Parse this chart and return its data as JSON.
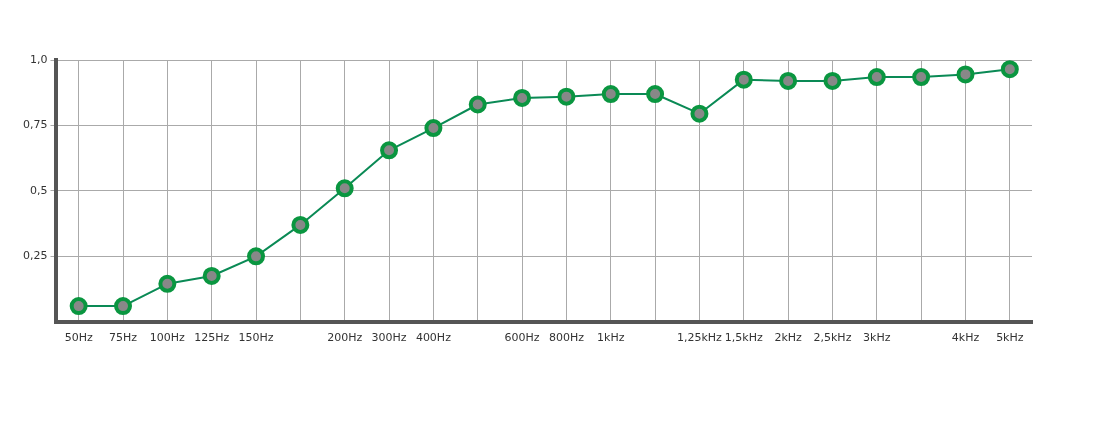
{
  "chart_data": {
    "type": "line",
    "categories": [
      "50Hz",
      "75Hz",
      "100Hz",
      "125Hz",
      "150Hz",
      null,
      "200Hz",
      "300Hz",
      "400Hz",
      null,
      "600Hz",
      "800Hz",
      "1kHz",
      null,
      "1,25kHz",
      "1,5kHz",
      "2kHz",
      "2,5kHz",
      "3kHz",
      null,
      "4kHz",
      "5kHz"
    ],
    "series": [
      {
        "color": "#0a8a55",
        "values": [
          0.06,
          0.06,
          0.145,
          0.175,
          0.25,
          0.37,
          0.51,
          0.655,
          0.74,
          0.83,
          0.855,
          0.86,
          0.87,
          0.87,
          0.795,
          0.925,
          0.92,
          0.92,
          0.935,
          0.935,
          0.945,
          0.965
        ]
      }
    ],
    "ylim": [
      0,
      1
    ],
    "yticks": [
      {
        "value": 0.25,
        "label": "0,25"
      },
      {
        "value": 0.5,
        "label": "0,5"
      },
      {
        "value": 0.75,
        "label": "0,75"
      },
      {
        "value": 1,
        "label": "1,0"
      }
    ],
    "grid": true,
    "legend": false,
    "marker": "circle",
    "line_style": "solid"
  }
}
